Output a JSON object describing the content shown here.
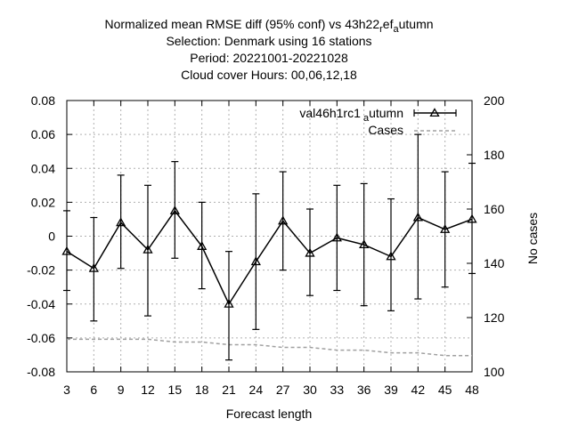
{
  "chart_data": {
    "type": "line",
    "title_lines": [
      {
        "parts": [
          "Normalized mean RMSE diff (95% conf) vs 43h22",
          "r",
          "ef",
          "a",
          "utumn"
        ]
      },
      {
        "text": "Selection: Denmark using    16 stations"
      },
      {
        "text": "Period: 20221001-20221028"
      },
      {
        "text": "Cloud cover   Hours:  00,06,12,18"
      }
    ],
    "xlabel": "Forecast length",
    "ylabel_right": "No cases",
    "x": [
      3,
      6,
      9,
      12,
      15,
      18,
      21,
      24,
      27,
      30,
      33,
      36,
      39,
      42,
      45,
      48
    ],
    "xlim": [
      3,
      48
    ],
    "ylim": [
      -0.08,
      0.08
    ],
    "y2lim": [
      100,
      200
    ],
    "y_ticks": [
      "0.08",
      "0.06",
      "0.04",
      "0.02",
      "0",
      "-0.02",
      "-0.04",
      "-0.06",
      "-0.08"
    ],
    "y_tick_values": [
      0.08,
      0.06,
      0.04,
      0.02,
      0,
      -0.02,
      -0.04,
      -0.06,
      -0.08
    ],
    "y2_ticks": [
      "200",
      "180",
      "160",
      "140",
      "120",
      "100"
    ],
    "y2_tick_values": [
      200,
      180,
      160,
      140,
      120,
      100
    ],
    "grid": true,
    "legend_position": "top-right",
    "series": [
      {
        "name_parts": [
          "val46h1rc1",
          "a",
          "utumn"
        ],
        "color": "#000000",
        "marker": "triangle",
        "values": [
          -0.009,
          -0.019,
          0.008,
          -0.008,
          0.015,
          -0.006,
          -0.04,
          -0.015,
          0.009,
          -0.01,
          -0.001,
          -0.005,
          -0.012,
          0.011,
          0.004,
          0.01
        ],
        "err_low": [
          -0.032,
          -0.05,
          -0.019,
          -0.047,
          -0.013,
          -0.031,
          -0.073,
          -0.055,
          -0.02,
          -0.035,
          -0.032,
          -0.041,
          -0.044,
          -0.037,
          -0.03,
          -0.022
        ],
        "err_high": [
          0.015,
          0.011,
          0.036,
          0.03,
          0.044,
          0.02,
          -0.009,
          0.025,
          0.038,
          0.016,
          0.03,
          0.031,
          0.022,
          0.06,
          0.038,
          0.043
        ]
      },
      {
        "name": "Cases",
        "color": "#a0a0a0",
        "axis": "right",
        "dashed": true,
        "values": [
          112,
          112,
          112,
          112,
          111,
          111,
          110,
          110,
          109,
          109,
          108,
          108,
          107,
          107,
          106,
          106
        ]
      }
    ]
  }
}
